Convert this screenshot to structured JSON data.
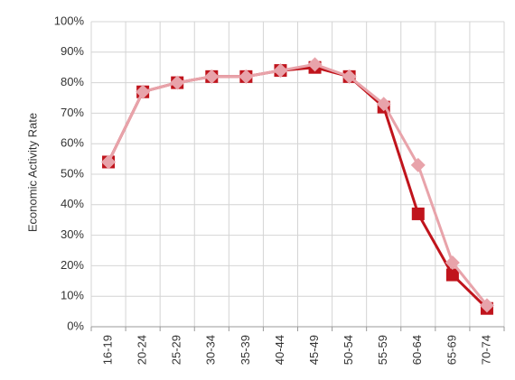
{
  "chart_data": {
    "type": "line",
    "title": "",
    "xlabel": "",
    "ylabel": "Economic Activity Rate",
    "categories": [
      "16-19",
      "20-24",
      "25-29",
      "30-34",
      "35-39",
      "40-44",
      "45-49",
      "50-54",
      "55-59",
      "60-64",
      "65-69",
      "70-74"
    ],
    "ylim": [
      0,
      100
    ],
    "yticks": [
      "0%",
      "10%",
      "20%",
      "30%",
      "40%",
      "50%",
      "60%",
      "70%",
      "80%",
      "90%",
      "100%"
    ],
    "grid": true,
    "legend": "none",
    "series": [
      {
        "color": "#c0141c",
        "marker": "square",
        "values": [
          54,
          77,
          80,
          82,
          82,
          84,
          85,
          82,
          72,
          37,
          17,
          6
        ]
      },
      {
        "color": "#e8a3aa",
        "marker": "diamond",
        "values": [
          54,
          77,
          80,
          82,
          82,
          84,
          86,
          82,
          73,
          53,
          21,
          7
        ]
      }
    ]
  }
}
